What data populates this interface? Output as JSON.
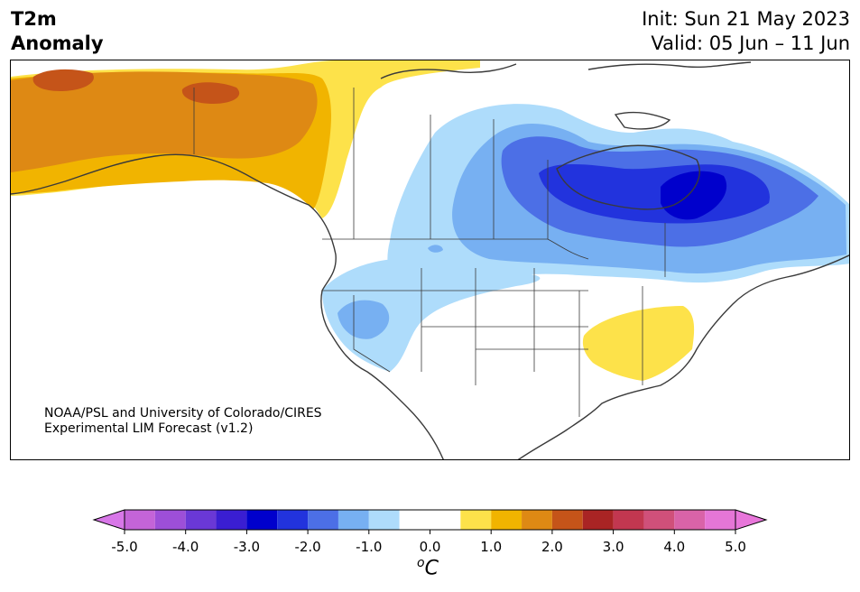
{
  "title": {
    "variable": "T2m",
    "kind": "Anomaly",
    "init": "Init: Sun 21 May 2023",
    "valid": "Valid: 05 Jun – 11 Jun"
  },
  "credit": {
    "line1": "NOAA/PSL and University of Colorado/CIRES",
    "line2": "Experimental LIM Forecast (v1.2)"
  },
  "colorbar": {
    "units": "C",
    "units_prefix": "o",
    "tick_labels": [
      "-5.0",
      "-4.0",
      "-3.0",
      "-2.0",
      "-1.0",
      "0.0",
      "1.0",
      "2.0",
      "3.0",
      "4.0",
      "5.0"
    ],
    "bins": [
      {
        "min": -5.0,
        "max": -4.5,
        "color": "#c464d8"
      },
      {
        "min": -4.5,
        "max": -4.0,
        "color": "#9d4fd8"
      },
      {
        "min": -4.0,
        "max": -3.5,
        "color": "#6a38d6"
      },
      {
        "min": -3.5,
        "max": -3.0,
        "color": "#3a1ed2"
      },
      {
        "min": -3.0,
        "max": -2.5,
        "color": "#0000cc"
      },
      {
        "min": -2.5,
        "max": -2.0,
        "color": "#2233dd"
      },
      {
        "min": -2.0,
        "max": -1.5,
        "color": "#4c6fe6"
      },
      {
        "min": -1.5,
        "max": -1.0,
        "color": "#77b0f2"
      },
      {
        "min": -1.0,
        "max": -0.5,
        "color": "#aedcfb"
      },
      {
        "min": -0.5,
        "max": 0.5,
        "color": "#ffffff"
      },
      {
        "min": 0.5,
        "max": 1.0,
        "color": "#fde24a"
      },
      {
        "min": 1.0,
        "max": 1.5,
        "color": "#f1b400"
      },
      {
        "min": 1.5,
        "max": 2.0,
        "color": "#de8914"
      },
      {
        "min": 2.0,
        "max": 2.5,
        "color": "#c55419"
      },
      {
        "min": 2.5,
        "max": 3.0,
        "color": "#a92424"
      },
      {
        "min": 3.0,
        "max": 3.5,
        "color": "#c23750"
      },
      {
        "min": 3.5,
        "max": 4.0,
        "color": "#d0507a"
      },
      {
        "min": 4.0,
        "max": 4.5,
        "color": "#d963a8"
      },
      {
        "min": 4.5,
        "max": 5.0,
        "color": "#e576d6"
      }
    ],
    "extend_low_color": "#d877e8",
    "extend_high_color": "#e876da"
  }
}
